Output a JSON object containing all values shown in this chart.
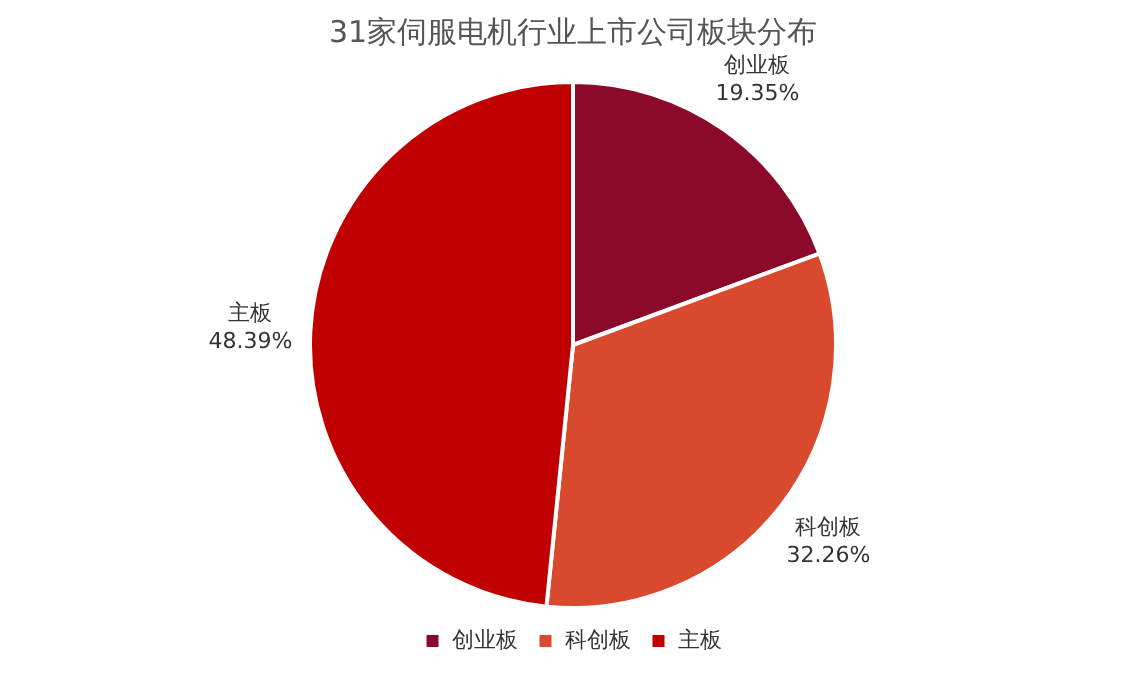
{
  "chart_data": {
    "type": "pie",
    "title": "31家伺服电机行业上市公司板块分布",
    "categories": [
      "创业板",
      "科创板",
      "主板"
    ],
    "values": [
      19.35,
      32.26,
      48.39
    ],
    "value_labels": [
      "19.35%",
      "32.26%",
      "48.39%"
    ],
    "colors": [
      "#8b0a2a",
      "#d9492e",
      "#c00000"
    ],
    "legend": "bottom"
  }
}
